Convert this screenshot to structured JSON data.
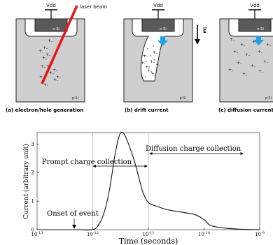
{
  "panels": [
    {
      "vdd": "Vdd",
      "nsi": "n-Si",
      "psi": "p-Si",
      "annotation": "laser beam",
      "caption": "(a) electron/hole generation",
      "charge_pairs": [
        [
          55,
          75
        ],
        [
          60,
          85
        ],
        [
          66,
          97
        ],
        [
          70,
          106
        ],
        [
          76,
          116
        ],
        [
          61,
          70
        ],
        [
          65,
          80
        ],
        [
          70,
          92
        ],
        [
          75,
          102
        ],
        [
          80,
          112
        ],
        [
          56,
          112
        ],
        [
          62,
          123
        ],
        [
          58,
          97
        ],
        [
          68,
          60
        ]
      ]
    },
    {
      "vdd": "Vdd",
      "nsi": "n-Si",
      "psi": "p-Si",
      "field_label": "E",
      "caption": "(b) drift current",
      "charge_pairs": [
        [
          204,
          82
        ],
        [
          214,
          90
        ],
        [
          207,
          98
        ],
        [
          218,
          77
        ],
        [
          210,
          103
        ],
        [
          222,
          95
        ],
        [
          201,
          92
        ],
        [
          216,
          108
        ]
      ]
    },
    {
      "vdd": "Vdd",
      "nsi": "n-Si",
      "psi": "p-Si",
      "caption": "(c) diffusion current",
      "charge_pairs": [
        [
          328,
          58
        ],
        [
          343,
          66
        ],
        [
          360,
          62
        ],
        [
          333,
          76
        ],
        [
          350,
          80
        ],
        [
          368,
          76
        ],
        [
          338,
          92
        ],
        [
          358,
          96
        ],
        [
          376,
          90
        ],
        [
          326,
          102
        ],
        [
          346,
          108
        ],
        [
          369,
          104
        ],
        [
          380,
          66
        ]
      ]
    }
  ],
  "graph": {
    "ylabel": "Current (arbitrary unit)",
    "xlabel": "Time (seconds)",
    "y_ticks": [
      "0",
      "1",
      "2",
      "3"
    ],
    "x_ticks": [
      {
        "base": "10",
        "exp": "-13"
      },
      {
        "base": "10",
        "exp": "-12"
      },
      {
        "base": "10",
        "exp": "-11"
      },
      {
        "base": "10",
        "exp": "-10"
      },
      {
        "base": "10",
        "exp": "-9"
      }
    ],
    "annotations": {
      "prompt": "Prompt charge collection",
      "diffusion": "Diffusion charge collection",
      "onset": "Onset of event"
    }
  },
  "chart_data": {
    "type": "line",
    "xlabel": "Time (seconds)",
    "ylabel": "Current (arbitrary unit)",
    "x_scale": "log",
    "xlim": [
      1e-13,
      1e-09
    ],
    "ylim": [
      0,
      3.4
    ],
    "x_ticks": [
      "10^-13",
      "10^-12",
      "10^-11",
      "10^-10",
      "10^-9"
    ],
    "y_ticks": [
      0,
      1,
      2,
      3
    ],
    "series": [
      {
        "x": [
          1e-13,
          5e-13,
          1e-12,
          1.3e-12,
          1.6e-12,
          2e-12,
          2.5e-12,
          3e-12,
          3.5e-12,
          4e-12,
          5e-12,
          6e-12,
          7e-12,
          8e-12,
          1e-11,
          1.5e-11,
          2e-11,
          3e-11,
          5e-11,
          7e-11,
          1e-10,
          1.3e-10,
          2e-10,
          4e-10,
          1e-09
        ],
        "y": [
          0,
          0,
          0,
          0.2,
          0.6,
          1.4,
          2.6,
          3.3,
          3.4,
          3.2,
          2.7,
          2.2,
          1.7,
          1.3,
          0.95,
          0.8,
          0.72,
          0.65,
          0.58,
          0.52,
          0.35,
          0.15,
          0.07,
          0.02,
          0
        ]
      }
    ]
  }
}
